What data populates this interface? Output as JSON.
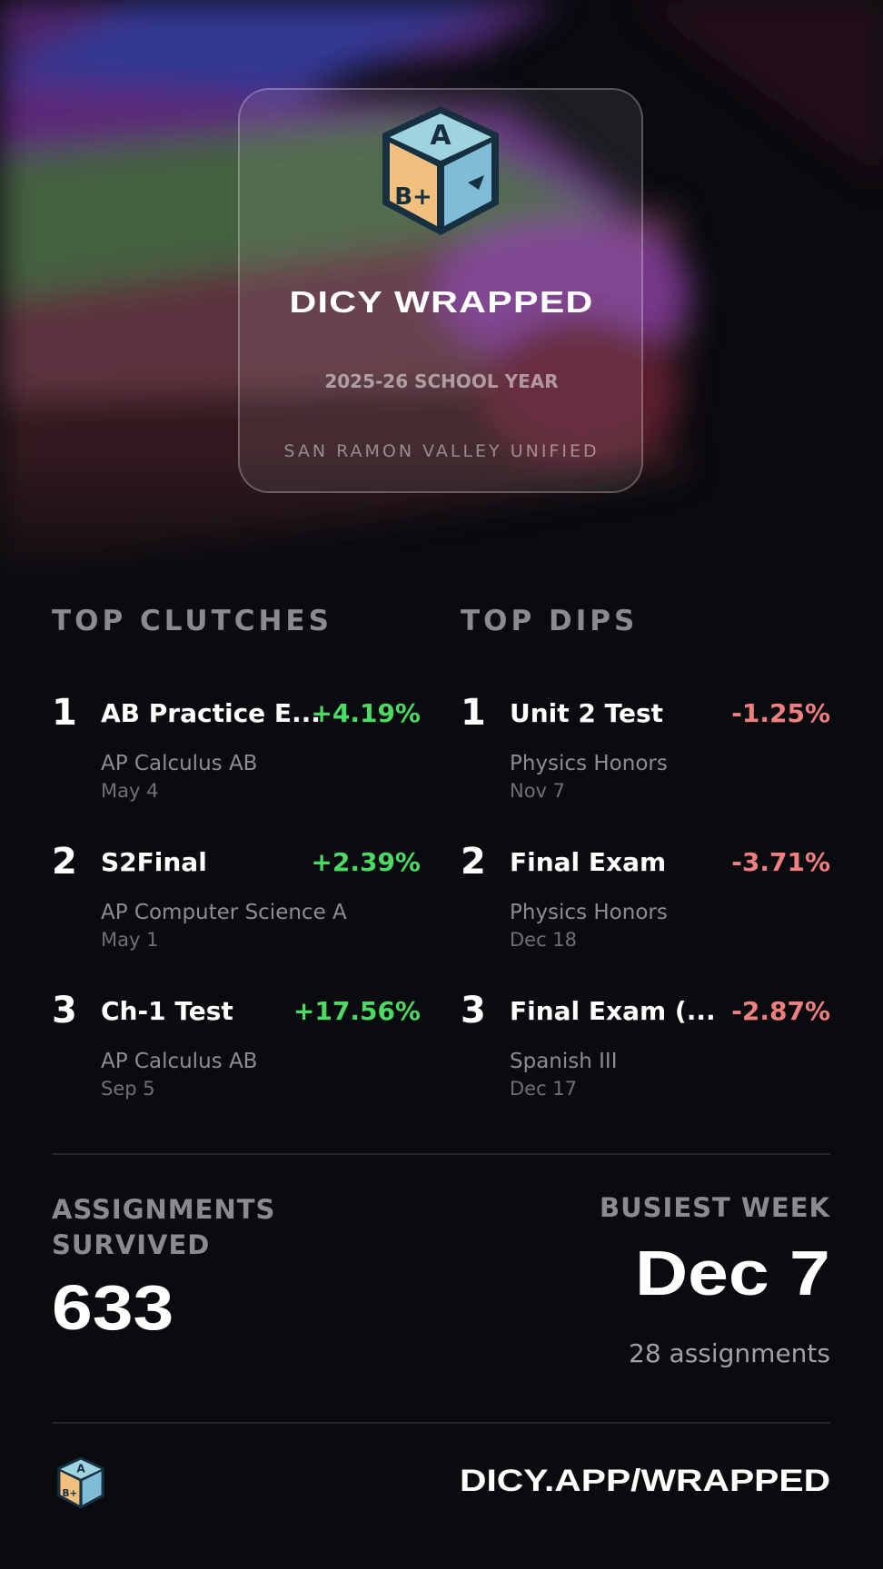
{
  "header": {
    "title": "DICY WRAPPED",
    "school_year": "2025-26 SCHOOL YEAR",
    "district": "SAN RAMON VALLEY UNIFIED",
    "logo": {
      "top": "A",
      "front": "B+"
    }
  },
  "top_clutches": {
    "heading": "TOP CLUTCHES",
    "items": [
      {
        "rank": 1,
        "name": "AB Practice E...",
        "change": "+4.19%",
        "course": "AP Calculus AB",
        "date": "May 4"
      },
      {
        "rank": 2,
        "name": "S2Final",
        "change": "+2.39%",
        "course": "AP Computer Science A",
        "date": "May 1"
      },
      {
        "rank": 3,
        "name": "Ch-1 Test",
        "change": "+17.56%",
        "course": "AP Calculus AB",
        "date": "Sep 5"
      }
    ]
  },
  "top_dips": {
    "heading": "TOP DIPS",
    "items": [
      {
        "rank": 1,
        "name": "Unit 2 Test",
        "change": "-1.25%",
        "course": "Physics Honors",
        "date": "Nov 7"
      },
      {
        "rank": 2,
        "name": "Final Exam",
        "change": "-3.71%",
        "course": "Physics Honors",
        "date": "Dec 18"
      },
      {
        "rank": 3,
        "name": "Final Exam (...",
        "change": "-2.87%",
        "course": "Spanish III",
        "date": "Dec 17"
      }
    ]
  },
  "assignments_survived": {
    "label": "ASSIGNMENTS SURVIVED",
    "value": 633
  },
  "busiest_week": {
    "label": "BUSIEST WEEK",
    "week": "Dec 7",
    "count": "28 assignments"
  },
  "footer": {
    "url": "DICY.APP/WRAPPED"
  }
}
